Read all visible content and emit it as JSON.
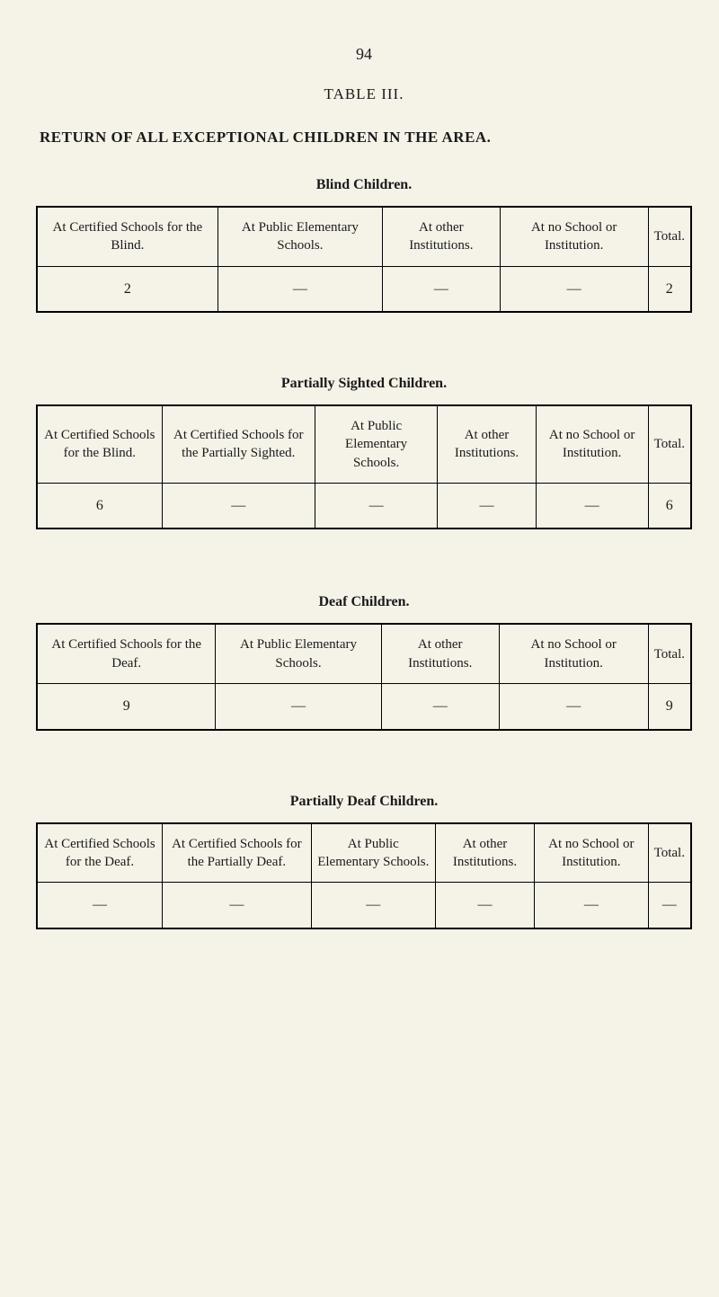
{
  "page_number": "94",
  "table_label": "TABLE III.",
  "main_title": "RETURN OF ALL EXCEPTIONAL CHILDREN IN THE AREA.",
  "colors": {
    "background": "#f5f2e8",
    "text": "#1a1a1a",
    "border": "#000000"
  },
  "tables": {
    "blind": {
      "title": "Blind Children.",
      "columns": [
        "At Certified Schools for the Blind.",
        "At Public Elementary Schools.",
        "At other Institutions.",
        "At no School or Institution.",
        "Total."
      ],
      "row": [
        "2",
        "—",
        "—",
        "—",
        "2"
      ]
    },
    "partially_sighted": {
      "title": "Partially Sighted Children.",
      "columns": [
        "At Certified Schools for the Blind.",
        "At Certified Schools for the Partially Sighted.",
        "At Public Elementary Schools.",
        "At other Institutions.",
        "At no School or Institution.",
        "Total."
      ],
      "row": [
        "6",
        "—",
        "—",
        "—",
        "—",
        "6"
      ]
    },
    "deaf": {
      "title": "Deaf Children.",
      "columns": [
        "At Certified Schools for the Deaf.",
        "At Public Elementary Schools.",
        "At other Institutions.",
        "At no School or Institution.",
        "Total."
      ],
      "row": [
        "9",
        "—",
        "—",
        "—",
        "9"
      ]
    },
    "partially_deaf": {
      "title": "Partially Deaf Children.",
      "columns": [
        "At Certified Schools for the Deaf.",
        "At Certified Schools for the Partially Deaf.",
        "At Public Elementary Schools.",
        "At other Institutions.",
        "At no School or Institution.",
        "Total."
      ],
      "row": [
        "—",
        "—",
        "—",
        "—",
        "—",
        "—"
      ]
    }
  }
}
